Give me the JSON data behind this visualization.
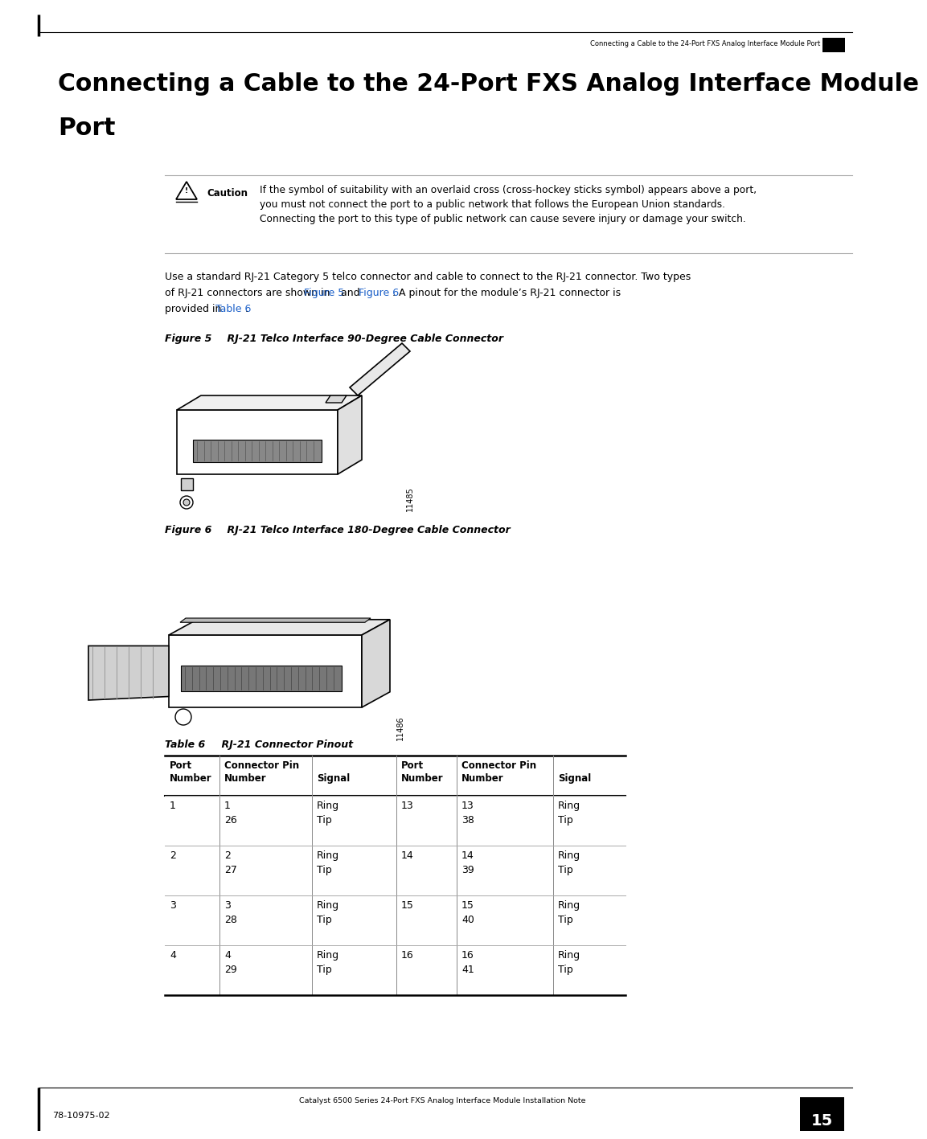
{
  "header_text": "Connecting a Cable to the 24-Port FXS Analog Interface Module Port",
  "footer_left": "78-10975-02",
  "footer_center": "Catalyst 6500 Series 24-Port FXS Analog Interface Module Installation Note",
  "footer_page": "15",
  "caution_label": "Caution",
  "caution_line1": "If the symbol of suitability with an overlaid cross (cross-hockey sticks symbol) appears above a port,",
  "caution_line2": "you must not connect the port to a public network that follows the European Union standards.",
  "caution_line3": "Connecting the port to this type of public network can cause severe injury or damage your switch.",
  "body_line1": "Use a standard RJ-21 Category 5 telco connector and cable to connect to the RJ-21 connector. Two types",
  "body_line2_pre": "of RJ-21 connectors are shown in ",
  "body_link1": "Figure 5",
  "body_line2_mid": " and ",
  "body_link2": "Figure 6",
  "body_line2_post": ". A pinout for the module’s RJ-21 connector is",
  "body_line3_pre": "provided in ",
  "body_link3": "Table 6",
  "body_line3_post": ".",
  "figure5_label": "Figure 5",
  "figure5_title": "    RJ-21 Telco Interface 90-Degree Cable Connector",
  "figure5_id": "11485",
  "figure6_label": "Figure 6",
  "figure6_title": "    RJ-21 Telco Interface 180-Degree Cable Connector",
  "figure6_id": "11486",
  "table_label": "Table 6",
  "table_title": "    RJ-21 Connector Pinout",
  "col_headers_row1": [
    "Port",
    "Connector Pin",
    "",
    "Port",
    "Connector Pin",
    ""
  ],
  "col_headers_row2": [
    "Number",
    "Number",
    "Signal",
    "Number",
    "Number",
    "Signal"
  ],
  "table_rows": [
    [
      "1",
      "1\n26",
      "Ring\nTip",
      "13",
      "13\n38",
      "Ring\nTip"
    ],
    [
      "2",
      "2\n27",
      "Ring\nTip",
      "14",
      "14\n39",
      "Ring\nTip"
    ],
    [
      "3",
      "3\n28",
      "Ring\nTip",
      "15",
      "15\n40",
      "Ring\nTip"
    ],
    [
      "4",
      "4\n29",
      "Ring\nTip",
      "16",
      "16\n41",
      "Ring\nTip"
    ]
  ],
  "link_color": "#1a5fc8",
  "bg_color": "#FFFFFF",
  "text_color": "#000000",
  "line_color": "#aaaaaa",
  "table_heavy_color": "#555555",
  "title_line1": "Connecting a Cable to the 24-Port FXS Analog Interface Module",
  "title_line2": "Port"
}
